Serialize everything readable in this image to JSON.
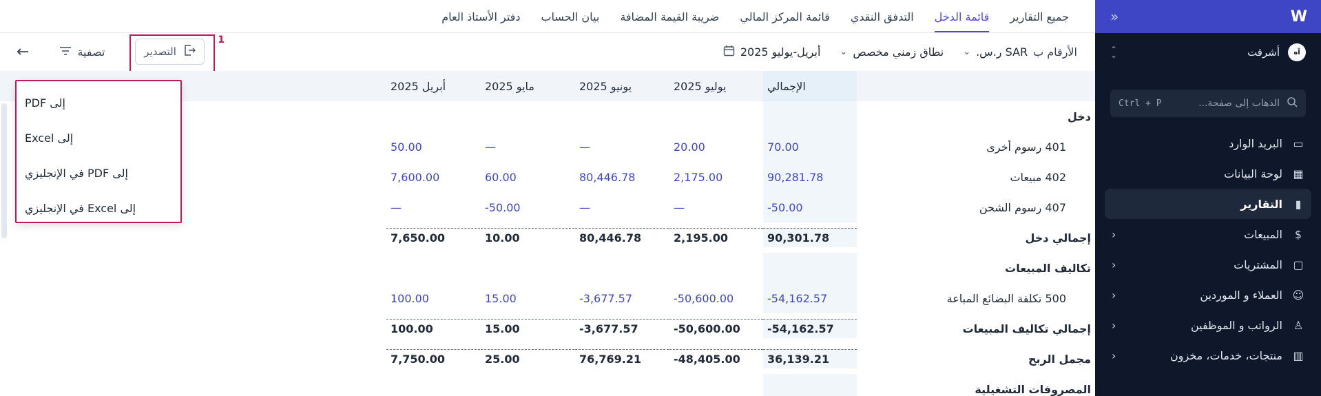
{
  "sidebar": {
    "logo": "W",
    "collapse_icon": "«",
    "org": {
      "avatar": "آه",
      "name": "أشرقت"
    },
    "search": {
      "placeholder": "الذهاب إلى صفحة...",
      "shortcut": "Ctrl + P"
    },
    "items": [
      {
        "label": "البريد الوارد",
        "icon": "inbox-icon",
        "glyph": "▭",
        "chevron": false,
        "active": false
      },
      {
        "label": "لوحة البيانات",
        "icon": "dashboard-icon",
        "glyph": "▦",
        "chevron": false,
        "active": false
      },
      {
        "label": "التقارير",
        "icon": "chart-icon",
        "glyph": "▮",
        "chevron": false,
        "active": true
      },
      {
        "label": "المبيعات",
        "icon": "dollar-icon",
        "glyph": "$",
        "chevron": true,
        "active": false
      },
      {
        "label": "المشتريات",
        "icon": "bag-icon",
        "glyph": "▢",
        "chevron": true,
        "active": false
      },
      {
        "label": "العملاء و الموردين",
        "icon": "users-icon",
        "glyph": "☺",
        "chevron": true,
        "active": false
      },
      {
        "label": "الرواتب و الموظفين",
        "icon": "payroll-icon",
        "glyph": "♙",
        "chevron": true,
        "active": false
      },
      {
        "label": "منتجات، خدمات، مخزون",
        "icon": "barcode-icon",
        "glyph": "▥",
        "chevron": true,
        "active": false
      }
    ]
  },
  "tabs": [
    {
      "label": "جميع التقارير",
      "active": false
    },
    {
      "label": "قائمة الدخل",
      "active": true
    },
    {
      "label": "التدفق النقدي",
      "active": false
    },
    {
      "label": "قائمة المركز المالي",
      "active": false
    },
    {
      "label": "ضريبة القيمة المضافة",
      "active": false
    },
    {
      "label": "بيان الحساب",
      "active": false
    },
    {
      "label": "دفتر الأستاذ العام",
      "active": false
    }
  ],
  "toolbar": {
    "numbers_label": "الأرقام ب",
    "currency": "SAR ر.س.",
    "range_type": "نطاق زمني مخصص",
    "date_range": "أبريل-يوليو 2025",
    "filter_label": "تصفية",
    "export_label": "التصدير",
    "annotation_number": "1"
  },
  "export_menu": [
    "إلى PDF",
    "إلى Excel",
    "إلى PDF في الإنجليزي",
    "إلى Excel في الإنجليزي"
  ],
  "table": {
    "columns": [
      "الإجمالي",
      "يوليو 2025",
      "يونيو 2025",
      "مايو 2025",
      "أبريل 2025"
    ],
    "rows": [
      {
        "label": "دخل",
        "type": "section",
        "values": []
      },
      {
        "label": "401 رسوم أخرى",
        "type": "account",
        "values": [
          "70.00",
          "20.00",
          "—",
          "—",
          "50.00"
        ]
      },
      {
        "label": "402 مبيعات",
        "type": "account",
        "values": [
          "90,281.78",
          "2,175.00",
          "80,446.78",
          "60.00",
          "7,600.00"
        ]
      },
      {
        "label": "407 رسوم الشحن",
        "type": "account",
        "values": [
          "-50.00",
          "—",
          "—",
          "-50.00",
          "—"
        ]
      },
      {
        "label": "إجمالي دخل",
        "type": "sum",
        "values": [
          "90,301.78",
          "2,195.00",
          "80,446.78",
          "10.00",
          "7,650.00"
        ]
      },
      {
        "label": "تكاليف المبيعات",
        "type": "section",
        "values": []
      },
      {
        "label": "500 تكلفة البضائع المباعة",
        "type": "account",
        "values": [
          "-54,162.57",
          "-50,600.00",
          "-3,677.57",
          "15.00",
          "100.00"
        ]
      },
      {
        "label": "إجمالي تكاليف المبيعات",
        "type": "sum",
        "values": [
          "-54,162.57",
          "-50,600.00",
          "-3,677.57",
          "15.00",
          "100.00"
        ]
      },
      {
        "label": "مجمل الربح",
        "type": "total",
        "values": [
          "36,139.21",
          "-48,405.00",
          "76,769.21",
          "25.00",
          "7,750.00"
        ]
      },
      {
        "label": "المصروفات التشغيلية",
        "type": "section",
        "values": []
      }
    ]
  },
  "colors": {
    "accent": "#4f46e5",
    "link": "#3f46c6",
    "sidebar_bg": "#0f172a",
    "highlight": "#c2185b"
  }
}
